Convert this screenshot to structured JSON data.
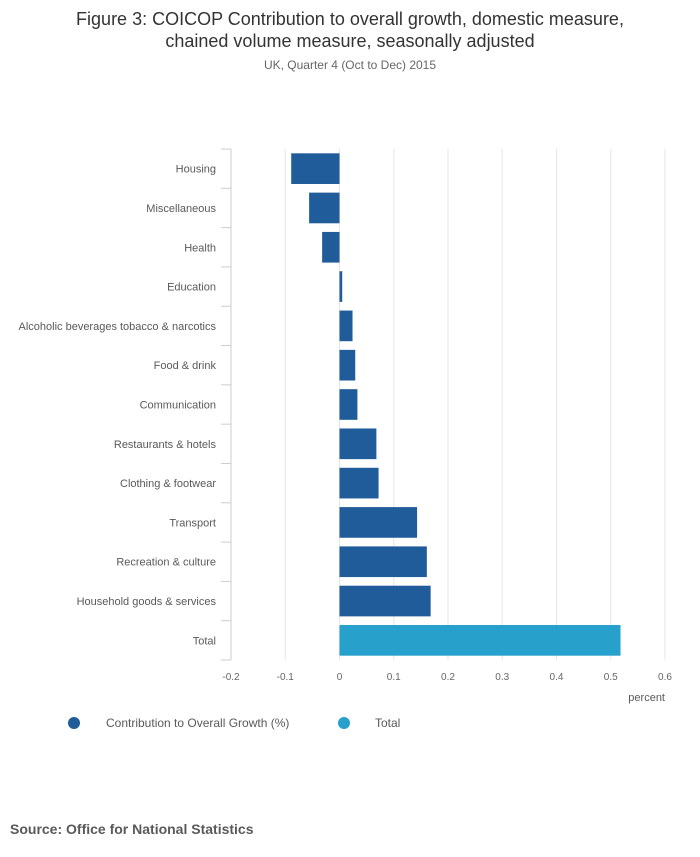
{
  "title": "Figure 3: COICOP Contribution to overall growth, domestic measure, chained volume measure, seasonally adjusted",
  "title_line1": "Figure 3: COICOP Contribution to overall growth, domestic measure,",
  "title_line2": "chained volume measure, seasonally adjusted",
  "subtitle": "UK, Quarter 4 (Oct to Dec) 2015",
  "source": "Source: Office for National Statistics",
  "colors": {
    "series": "#1f5c99",
    "total": "#27a0cc",
    "grid": "#e6e6e6",
    "axis": "#cccccc"
  },
  "legend": [
    {
      "label": "Contribution to Overall Growth (%)",
      "color": "#1f5c99"
    },
    {
      "label": "Total",
      "color": "#27a0cc"
    }
  ],
  "chart_data": {
    "type": "bar",
    "orientation": "horizontal",
    "title": "Figure 3: COICOP Contribution to overall growth, domestic measure, chained volume measure, seasonally adjusted",
    "subtitle": "UK, Quarter 4 (Oct to Dec) 2015",
    "xlabel": "percent",
    "ylabel": "",
    "xlim": [
      -0.2,
      0.6
    ],
    "xticks": [
      -0.2,
      -0.1,
      0,
      0.1,
      0.2,
      0.3,
      0.4,
      0.5,
      0.6
    ],
    "xtick_labels": [
      "-0.2",
      "-0.1",
      "0",
      "0.1",
      "0.2",
      "0.3",
      "0.4",
      "0.5",
      "0.6"
    ],
    "grid": true,
    "legend_position": "bottom-left",
    "categories": [
      "Housing",
      "Miscellaneous",
      "Health",
      "Education",
      "Alcoholic beverages tobacco & narcotics",
      "Food & drink",
      "Communication",
      "Restaurants & hotels",
      "Clothing & footwear",
      "Transport",
      "Recreation & culture",
      "Household goods & services",
      "Total"
    ],
    "series": [
      {
        "name": "Contribution to Overall Growth (%)",
        "values": [
          -0.089,
          -0.056,
          -0.032,
          0.005,
          0.024,
          0.029,
          0.033,
          0.068,
          0.072,
          0.143,
          0.161,
          0.168,
          null
        ]
      },
      {
        "name": "Total",
        "values": [
          null,
          null,
          null,
          null,
          null,
          null,
          null,
          null,
          null,
          null,
          null,
          null,
          0.518
        ]
      }
    ]
  }
}
